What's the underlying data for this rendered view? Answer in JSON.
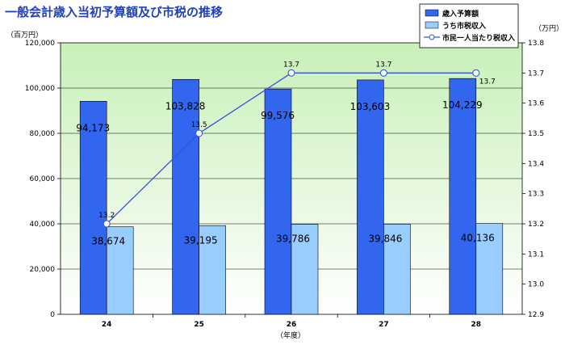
{
  "chart_data": {
    "type": "bar",
    "title": "一般会計歳入当初予算額及び市税の推移",
    "categories": [
      "24",
      "25",
      "26",
      "27",
      "28"
    ],
    "xlabel": "（年度）",
    "y_left_unit": "（百万円）",
    "y_right_unit": "（万円）",
    "ylim_left": [
      0,
      120000
    ],
    "ylim_right": [
      12.9,
      13.8
    ],
    "yticks_left": [
      "0",
      "20,000",
      "40,000",
      "60,000",
      "80,000",
      "100,000",
      "120,000"
    ],
    "yticks_right": [
      "12.9",
      "13.0",
      "13.1",
      "13.2",
      "13.3",
      "13.4",
      "13.5",
      "13.6",
      "13.7",
      "13.8"
    ],
    "series": [
      {
        "name": "歳入予算額",
        "kind": "bar",
        "axis": "left",
        "color": "#3366ee",
        "values": [
          94173,
          103828,
          99576,
          103603,
          104229
        ],
        "labels": [
          "94,173",
          "103,828",
          "99,576",
          "103,603",
          "104,229"
        ]
      },
      {
        "name": "うち市税収入",
        "kind": "bar",
        "axis": "left",
        "color": "#99ccff",
        "values": [
          38674,
          39195,
          39786,
          39846,
          40136
        ],
        "labels": [
          "38,674",
          "39,195",
          "39,786",
          "39,846",
          "40,136"
        ]
      },
      {
        "name": "市民一人当たり税収入",
        "kind": "line",
        "axis": "right",
        "color": "#3355dd",
        "values": [
          13.2,
          13.5,
          13.7,
          13.7,
          13.7
        ],
        "labels": [
          "13.2",
          "13.5",
          "13.7",
          "13.7",
          "13.7"
        ]
      }
    ],
    "legend": "top-right",
    "plot_background": [
      "#ffffff",
      "#c8f0b8"
    ]
  }
}
